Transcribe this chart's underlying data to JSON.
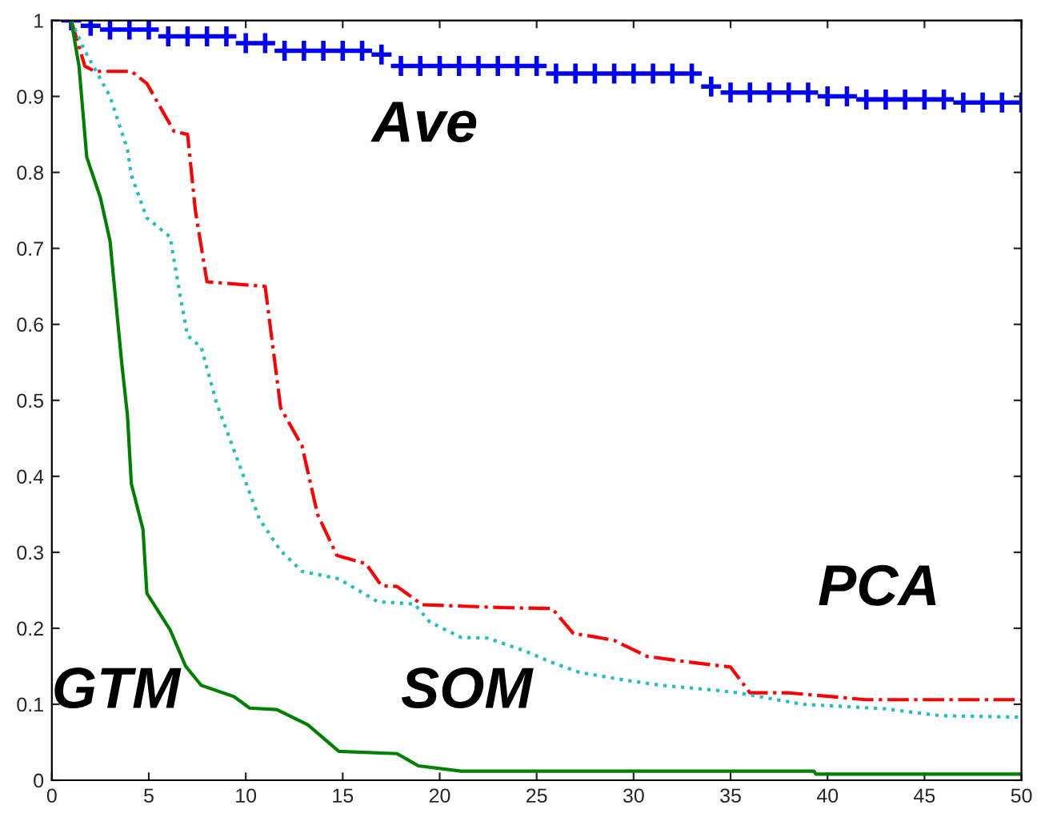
{
  "chart_data": {
    "type": "line",
    "xlim": [
      0,
      50
    ],
    "ylim": [
      0,
      1
    ],
    "xticks": [
      0,
      5,
      10,
      15,
      20,
      25,
      30,
      35,
      40,
      45,
      50
    ],
    "yticks": [
      0,
      0.1,
      0.2,
      0.3,
      0.4,
      0.5,
      0.6,
      0.7,
      0.8,
      0.9,
      1
    ],
    "grid": false,
    "legend": false,
    "series": [
      {
        "name": "Ave",
        "type": "scatter",
        "marker": "cross",
        "color": "#0000ff",
        "x": [
          1,
          2,
          3,
          4,
          5,
          6,
          7,
          8,
          9,
          10,
          11,
          12,
          13,
          14,
          15,
          16,
          17,
          18,
          19,
          20,
          21,
          22,
          23,
          24,
          25,
          26,
          27,
          28,
          29,
          30,
          31,
          32,
          33,
          34,
          35,
          36,
          37,
          38,
          39,
          40,
          41,
          42,
          43,
          44,
          45,
          46,
          47,
          48,
          49,
          50
        ],
        "values": [
          1.0,
          0.993,
          0.988,
          0.988,
          0.988,
          0.979,
          0.979,
          0.979,
          0.979,
          0.97,
          0.97,
          0.96,
          0.96,
          0.96,
          0.96,
          0.96,
          0.955,
          0.94,
          0.94,
          0.94,
          0.94,
          0.94,
          0.94,
          0.94,
          0.94,
          0.93,
          0.93,
          0.93,
          0.93,
          0.93,
          0.93,
          0.93,
          0.93,
          0.913,
          0.905,
          0.905,
          0.905,
          0.905,
          0.905,
          0.9,
          0.9,
          0.896,
          0.896,
          0.896,
          0.896,
          0.896,
          0.892,
          0.892,
          0.892,
          0.892
        ]
      },
      {
        "name": "PCA",
        "line_style": "dashdot",
        "color": "#ff0000",
        "x": [
          1,
          1.7,
          2.2,
          4.1,
          4.9,
          6.3,
          7.0,
          7.4,
          8.0,
          11.0,
          11.8,
          12.9,
          13.7,
          14.7,
          16.2,
          17.0,
          17.8,
          19.1,
          23.5,
          25.8,
          26.9,
          27.7,
          29.0,
          30.7,
          33.0,
          35.0,
          36.0,
          38.0,
          42.0,
          50.0
        ],
        "values": [
          1.0,
          0.94,
          0.933,
          0.933,
          0.917,
          0.854,
          0.85,
          0.75,
          0.656,
          0.65,
          0.49,
          0.44,
          0.35,
          0.296,
          0.285,
          0.256,
          0.255,
          0.231,
          0.227,
          0.226,
          0.193,
          0.19,
          0.184,
          0.163,
          0.155,
          0.149,
          0.115,
          0.115,
          0.106,
          0.106
        ]
      },
      {
        "name": "SOM",
        "line_style": "dotted",
        "color": "#20c0c0",
        "x": [
          1,
          1.7,
          3.0,
          3.9,
          4.1,
          4.9,
          6.1,
          6.6,
          7.0,
          7.7,
          8.5,
          9.6,
          10.7,
          11.8,
          12.9,
          14.8,
          16.8,
          18.7,
          19.5,
          21.1,
          22.5,
          24.4,
          25.8,
          27.2,
          29.5,
          31.4,
          34.4,
          35.4,
          38.7,
          43.0,
          45.8,
          50.0
        ],
        "values": [
          1.0,
          0.96,
          0.9,
          0.83,
          0.796,
          0.74,
          0.715,
          0.64,
          0.585,
          0.57,
          0.496,
          0.42,
          0.344,
          0.302,
          0.275,
          0.265,
          0.235,
          0.232,
          0.208,
          0.188,
          0.187,
          0.17,
          0.155,
          0.142,
          0.132,
          0.125,
          0.118,
          0.115,
          0.1,
          0.094,
          0.085,
          0.083
        ]
      },
      {
        "name": "GTM",
        "line_style": "solid",
        "color": "#008000",
        "x": [
          1,
          1.4,
          1.8,
          2.5,
          3.0,
          3.3,
          3.6,
          3.9,
          4.1,
          4.7,
          4.9,
          6.1,
          6.9,
          7.7,
          9.4,
          10.2,
          11.6,
          13.2,
          14.8,
          17.8,
          18.9,
          21.1,
          39.3,
          39.4,
          50.0
        ],
        "values": [
          1.0,
          0.94,
          0.82,
          0.767,
          0.71,
          0.63,
          0.55,
          0.48,
          0.39,
          0.33,
          0.246,
          0.198,
          0.15,
          0.125,
          0.11,
          0.095,
          0.093,
          0.073,
          0.038,
          0.035,
          0.019,
          0.012,
          0.012,
          0.008,
          0.008
        ]
      }
    ]
  }
}
